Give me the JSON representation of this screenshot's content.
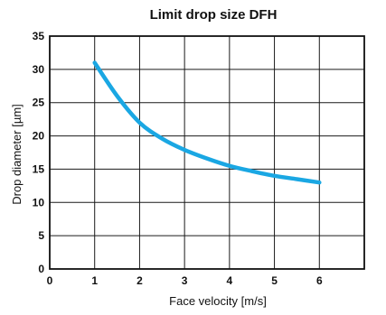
{
  "chart_data": {
    "type": "line",
    "title": "Limit drop size DFH",
    "xlabel": "Face velocity [m/s]",
    "ylabel": "Drop diameter  [µm]",
    "xlim": [
      0,
      7
    ],
    "ylim": [
      0,
      35
    ],
    "xticks": [
      0,
      1,
      2,
      3,
      4,
      5,
      6
    ],
    "yticks": [
      0,
      5,
      10,
      15,
      20,
      25,
      30,
      35
    ],
    "grid": true,
    "line_color": "#1aa7e3",
    "series": [
      {
        "x": [
          1,
          1.5,
          2,
          2.5,
          3,
          3.5,
          4,
          4.5,
          5,
          5.5,
          6
        ],
        "values": [
          31,
          26,
          22,
          19.6,
          17.9,
          16.6,
          15.5,
          14.7,
          14.0,
          13.5,
          13.0
        ]
      }
    ]
  }
}
